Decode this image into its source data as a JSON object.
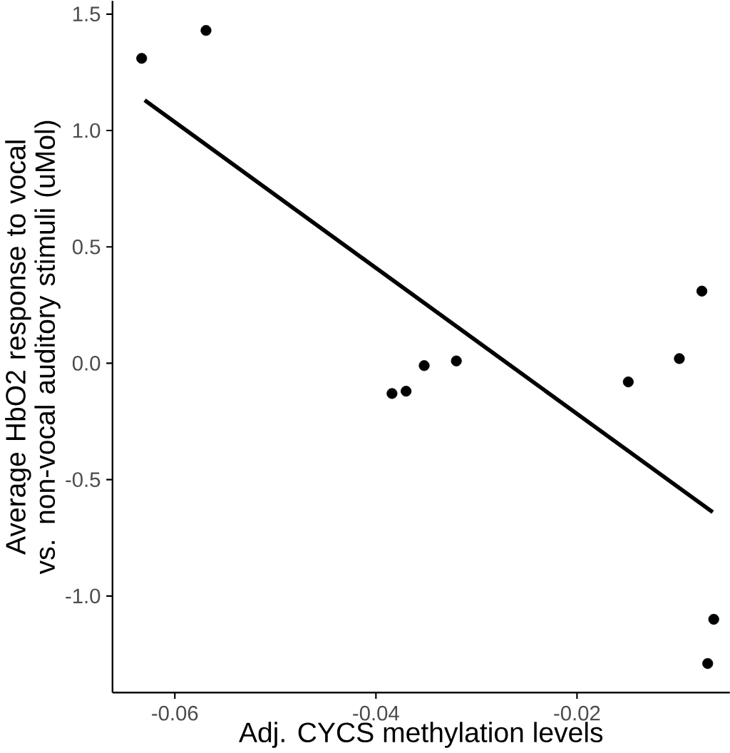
{
  "chart_data": {
    "type": "scatter",
    "xlabel": "Adj. CYCS methylation levels",
    "ylabel": "Average HbO2 response to vocal vs. non-vocal auditory stimuli (uMol)",
    "series": [
      {
        "type": "scatter",
        "color": "#000000",
        "marker": "circle",
        "x": [
          -0.0633,
          -0.0569,
          -0.00758,
          -0.00982,
          -0.032,
          -0.0352,
          -0.0384,
          -0.037,
          -0.0149,
          -0.0064,
          -0.007
        ],
        "values": [
          1.31,
          1.43,
          0.31,
          0.02,
          0.01,
          -0.01,
          -0.13,
          -0.12,
          -0.08,
          -1.1,
          -1.29
        ]
      },
      {
        "type": "line",
        "color": "#000000",
        "x": [
          -0.063,
          -0.0065
        ],
        "values": [
          1.13,
          -0.64
        ]
      }
    ],
    "xlim": [
      -0.0662,
      -0.0048
    ],
    "ylim": [
      -1.415,
      1.557
    ],
    "xticks": [
      -0.06,
      -0.04,
      -0.02
    ],
    "yticks": [
      {
        "value": -1,
        "label": "-1.0"
      },
      -0.5,
      {
        "value": 0,
        "label": "0.0"
      },
      0.5,
      {
        "value": 1,
        "label": "1.0"
      },
      1.5
    ],
    "grid": false
  }
}
